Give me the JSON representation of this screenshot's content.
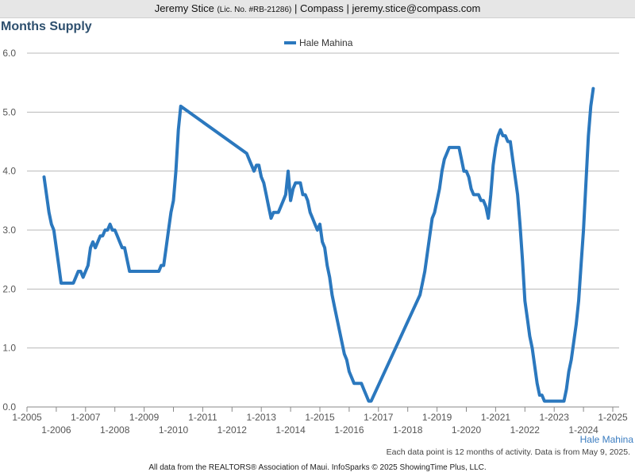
{
  "header": {
    "name": "Jeremy Stice",
    "license": "(Lic. No. #RB-21286)",
    "rest": "| Compass | jeremy.stice@compass.com"
  },
  "corner_label": "Hale Mahina",
  "footnote": "Each data point is 12 months of activity. Data is from May 9, 2025.",
  "source": "All data from the REALTORS® Association of Maui. InfoSparks © 2025 ShowingTime Plus, LLC.",
  "colors": {
    "series": "#2b78be",
    "grid": "#b8b8b8",
    "title": "#2d4f6e"
  },
  "chart_data": {
    "type": "line",
    "title": "Months Supply",
    "xlabel": "",
    "ylabel": "",
    "ylim": [
      0,
      6
    ],
    "yticks": [
      "0.0",
      "1.0",
      "2.0",
      "3.0",
      "4.0",
      "5.0",
      "6.0"
    ],
    "xlim": [
      "2005-01",
      "2025-01"
    ],
    "xticks": [
      "1-2005",
      "1-2006",
      "1-2007",
      "1-2008",
      "1-2009",
      "1-2010",
      "1-2011",
      "1-2012",
      "1-2013",
      "1-2014",
      "1-2015",
      "1-2016",
      "1-2017",
      "1-2018",
      "1-2019",
      "1-2020",
      "1-2021",
      "1-2022",
      "1-2023",
      "1-2024",
      "1-2025"
    ],
    "grid": true,
    "legend": "top-center",
    "series": [
      {
        "name": "Hale Mahina",
        "points": [
          [
            "2005-08",
            3.9
          ],
          [
            "2005-09",
            3.6
          ],
          [
            "2005-10",
            3.3
          ],
          [
            "2005-11",
            3.1
          ],
          [
            "2005-12",
            3.0
          ],
          [
            "2006-01",
            2.7
          ],
          [
            "2006-02",
            2.4
          ],
          [
            "2006-03",
            2.1
          ],
          [
            "2006-04",
            2.1
          ],
          [
            "2006-06",
            2.1
          ],
          [
            "2006-08",
            2.1
          ],
          [
            "2006-09",
            2.2
          ],
          [
            "2006-10",
            2.3
          ],
          [
            "2006-11",
            2.3
          ],
          [
            "2006-12",
            2.2
          ],
          [
            "2007-01",
            2.3
          ],
          [
            "2007-02",
            2.4
          ],
          [
            "2007-03",
            2.7
          ],
          [
            "2007-04",
            2.8
          ],
          [
            "2007-05",
            2.7
          ],
          [
            "2007-06",
            2.8
          ],
          [
            "2007-07",
            2.9
          ],
          [
            "2007-08",
            2.9
          ],
          [
            "2007-09",
            3.0
          ],
          [
            "2007-10",
            3.0
          ],
          [
            "2007-11",
            3.1
          ],
          [
            "2007-12",
            3.0
          ],
          [
            "2008-01",
            3.0
          ],
          [
            "2008-02",
            2.9
          ],
          [
            "2008-03",
            2.8
          ],
          [
            "2008-04",
            2.7
          ],
          [
            "2008-05",
            2.7
          ],
          [
            "2008-06",
            2.5
          ],
          [
            "2008-07",
            2.3
          ],
          [
            "2008-10",
            2.3
          ],
          [
            "2009-02",
            2.3
          ],
          [
            "2009-06",
            2.3
          ],
          [
            "2009-07",
            2.3
          ],
          [
            "2009-08",
            2.4
          ],
          [
            "2009-09",
            2.4
          ],
          [
            "2009-10",
            2.7
          ],
          [
            "2009-11",
            3.0
          ],
          [
            "2009-12",
            3.3
          ],
          [
            "2010-01",
            3.5
          ],
          [
            "2010-02",
            4.0
          ],
          [
            "2010-03",
            4.7
          ],
          [
            "2010-04",
            5.1
          ],
          [
            "2012-07",
            4.3
          ],
          [
            "2012-08",
            4.2
          ],
          [
            "2012-09",
            4.1
          ],
          [
            "2012-10",
            4.0
          ],
          [
            "2012-11",
            4.1
          ],
          [
            "2012-12",
            4.1
          ],
          [
            "2013-01",
            3.9
          ],
          [
            "2013-02",
            3.8
          ],
          [
            "2013-03",
            3.6
          ],
          [
            "2013-04",
            3.4
          ],
          [
            "2013-05",
            3.2
          ],
          [
            "2013-06",
            3.3
          ],
          [
            "2013-07",
            3.3
          ],
          [
            "2013-08",
            3.3
          ],
          [
            "2013-09",
            3.4
          ],
          [
            "2013-10",
            3.5
          ],
          [
            "2013-11",
            3.6
          ],
          [
            "2013-12",
            4.0
          ],
          [
            "2014-01",
            3.5
          ],
          [
            "2014-02",
            3.7
          ],
          [
            "2014-03",
            3.8
          ],
          [
            "2014-04",
            3.8
          ],
          [
            "2014-05",
            3.8
          ],
          [
            "2014-06",
            3.6
          ],
          [
            "2014-07",
            3.6
          ],
          [
            "2014-08",
            3.5
          ],
          [
            "2014-09",
            3.3
          ],
          [
            "2014-10",
            3.2
          ],
          [
            "2014-11",
            3.1
          ],
          [
            "2014-12",
            3.0
          ],
          [
            "2015-01",
            3.1
          ],
          [
            "2015-02",
            2.8
          ],
          [
            "2015-03",
            2.7
          ],
          [
            "2015-04",
            2.4
          ],
          [
            "2015-05",
            2.2
          ],
          [
            "2015-06",
            1.9
          ],
          [
            "2015-07",
            1.7
          ],
          [
            "2015-08",
            1.5
          ],
          [
            "2015-09",
            1.3
          ],
          [
            "2015-10",
            1.1
          ],
          [
            "2015-11",
            0.9
          ],
          [
            "2015-12",
            0.8
          ],
          [
            "2016-01",
            0.6
          ],
          [
            "2016-02",
            0.5
          ],
          [
            "2016-03",
            0.4
          ],
          [
            "2016-04",
            0.4
          ],
          [
            "2016-05",
            0.4
          ],
          [
            "2016-06",
            0.4
          ],
          [
            "2016-07",
            0.3
          ],
          [
            "2016-08",
            0.2
          ],
          [
            "2016-09",
            0.1
          ],
          [
            "2016-10",
            0.1
          ],
          [
            "2018-06",
            1.9
          ],
          [
            "2018-07",
            2.1
          ],
          [
            "2018-08",
            2.3
          ],
          [
            "2018-09",
            2.6
          ],
          [
            "2018-10",
            2.9
          ],
          [
            "2018-11",
            3.2
          ],
          [
            "2018-12",
            3.3
          ],
          [
            "2019-01",
            3.5
          ],
          [
            "2019-02",
            3.7
          ],
          [
            "2019-03",
            4.0
          ],
          [
            "2019-04",
            4.2
          ],
          [
            "2019-05",
            4.3
          ],
          [
            "2019-06",
            4.4
          ],
          [
            "2019-07",
            4.4
          ],
          [
            "2019-08",
            4.4
          ],
          [
            "2019-09",
            4.4
          ],
          [
            "2019-10",
            4.4
          ],
          [
            "2019-11",
            4.2
          ],
          [
            "2019-12",
            4.0
          ],
          [
            "2020-01",
            4.0
          ],
          [
            "2020-02",
            3.9
          ],
          [
            "2020-03",
            3.7
          ],
          [
            "2020-04",
            3.6
          ],
          [
            "2020-05",
            3.6
          ],
          [
            "2020-06",
            3.6
          ],
          [
            "2020-07",
            3.5
          ],
          [
            "2020-08",
            3.5
          ],
          [
            "2020-09",
            3.4
          ],
          [
            "2020-10",
            3.2
          ],
          [
            "2020-11",
            3.6
          ],
          [
            "2020-12",
            4.1
          ],
          [
            "2021-01",
            4.4
          ],
          [
            "2021-02",
            4.6
          ],
          [
            "2021-03",
            4.7
          ],
          [
            "2021-04",
            4.6
          ],
          [
            "2021-05",
            4.6
          ],
          [
            "2021-06",
            4.5
          ],
          [
            "2021-07",
            4.5
          ],
          [
            "2021-08",
            4.2
          ],
          [
            "2021-09",
            3.9
          ],
          [
            "2021-10",
            3.6
          ],
          [
            "2021-11",
            3.1
          ],
          [
            "2021-12",
            2.5
          ],
          [
            "2022-01",
            1.8
          ],
          [
            "2022-02",
            1.5
          ],
          [
            "2022-03",
            1.2
          ],
          [
            "2022-04",
            1.0
          ],
          [
            "2022-05",
            0.7
          ],
          [
            "2022-06",
            0.4
          ],
          [
            "2022-07",
            0.2
          ],
          [
            "2022-08",
            0.2
          ],
          [
            "2022-09",
            0.1
          ],
          [
            "2022-10",
            0.1
          ],
          [
            "2023-05",
            0.1
          ],
          [
            "2023-06",
            0.3
          ],
          [
            "2023-07",
            0.6
          ],
          [
            "2023-08",
            0.8
          ],
          [
            "2023-09",
            1.1
          ],
          [
            "2023-10",
            1.4
          ],
          [
            "2023-11",
            1.8
          ],
          [
            "2023-12",
            2.4
          ],
          [
            "2024-01",
            3.0
          ],
          [
            "2024-02",
            3.8
          ],
          [
            "2024-03",
            4.6
          ],
          [
            "2024-04",
            5.1
          ],
          [
            "2024-05",
            5.4
          ]
        ]
      }
    ]
  }
}
